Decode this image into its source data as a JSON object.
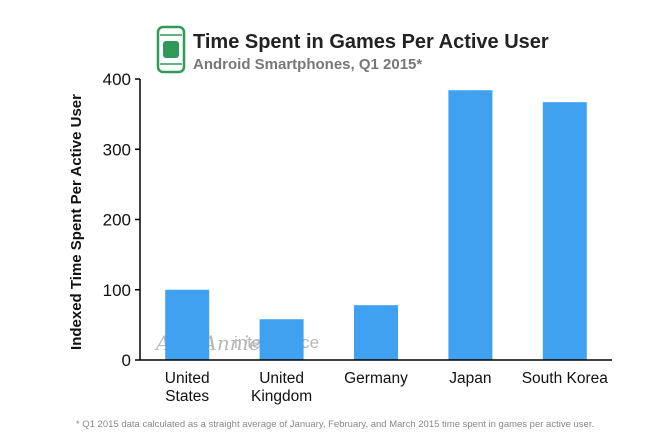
{
  "header": {
    "icon": "smartphone-icon",
    "title": "Time Spent in Games Per Active User",
    "subtitle": "Android Smartphones, Q1 2015*"
  },
  "watermark": {
    "brand": "App Annie",
    "product": "intelligence"
  },
  "footnote": "* Q1 2015 data calculated as a straight average of January, February, and March 2015 time spent in games per active user.",
  "colors": {
    "bar": "#3fa1f0",
    "axis": "#000000",
    "icon_frame": "#2f9a57",
    "icon_fill": "#2f9a57"
  },
  "chart_data": {
    "type": "bar",
    "title": "Time Spent in Games Per Active User",
    "subtitle": "Android Smartphones, Q1 2015*",
    "xlabel": "",
    "ylabel": "Indexed Time Spent Per Active User",
    "ylim": [
      0,
      400
    ],
    "yticks": [
      0,
      100,
      200,
      300,
      400
    ],
    "grid": false,
    "legend": "none",
    "categories": [
      [
        "United",
        "States"
      ],
      [
        "United",
        "Kingdom"
      ],
      [
        "Germany"
      ],
      [
        "Japan"
      ],
      [
        "South Korea"
      ]
    ],
    "values": [
      100,
      58,
      78,
      384,
      367
    ]
  }
}
